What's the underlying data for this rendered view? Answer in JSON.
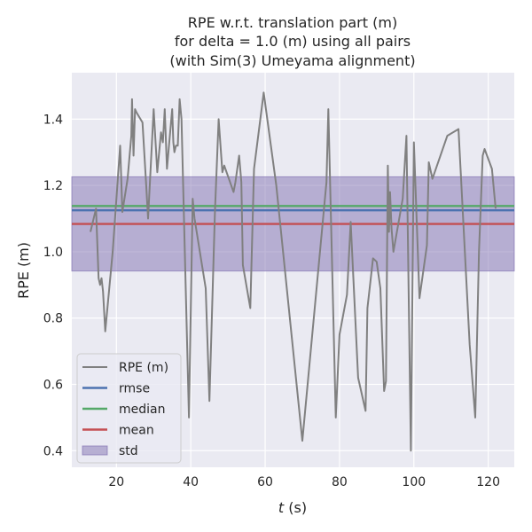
{
  "chart_data": {
    "type": "line",
    "title": [
      "RPE w.r.t. translation part (m)",
      "for delta = 1.0 (m) using all pairs",
      "(with Sim(3) Umeyama alignment)"
    ],
    "xlabel_italic": "t",
    "xlabel_unit": " (s)",
    "ylabel": "RPE (m)",
    "xlim": [
      8,
      127
    ],
    "ylim": [
      0.35,
      1.54
    ],
    "xticks": [
      20,
      40,
      60,
      80,
      100,
      120
    ],
    "yticks": [
      0.4,
      0.6,
      0.8,
      1.0,
      1.2,
      1.4
    ],
    "grid": true,
    "legend_position": "lower left",
    "series": [
      {
        "name": "RPE (m)",
        "color": "#808080",
        "x": [
          13.0,
          14.5,
          15.2,
          15.6,
          16.0,
          16.4,
          17.0,
          19.0,
          21.0,
          21.6,
          23.0,
          24.0,
          24.2,
          24.6,
          25.0,
          25.4,
          27.0,
          28.0,
          28.5,
          30.0,
          31.0,
          32.0,
          32.5,
          33.0,
          33.6,
          35.0,
          35.3,
          35.6,
          36.0,
          36.5,
          37.0,
          37.5,
          39.5,
          40.5,
          41.0,
          44.0,
          45.0,
          46.5,
          47.5,
          48.5,
          49.0,
          51.5,
          52.0,
          53.0,
          53.6,
          54.0,
          56.0,
          57.0,
          59.6,
          63.0,
          70.0,
          76.5,
          77.0,
          79.0,
          80.0,
          82.0,
          83.0,
          85.0,
          87.0,
          87.5,
          89.0,
          90.0,
          91.0,
          92.0,
          92.5,
          93.0,
          93.3,
          93.6,
          94.0,
          94.5,
          97.0,
          98.0,
          99.2,
          100.0,
          101.5,
          103.5,
          104.0,
          105.0,
          109.0,
          112.0,
          115.0,
          116.5,
          117.5,
          118.5,
          119.0,
          121.0,
          122.0
        ],
        "y": [
          1.06,
          1.13,
          0.92,
          0.9,
          0.92,
          0.88,
          0.76,
          1.0,
          1.32,
          1.12,
          1.22,
          1.35,
          1.46,
          1.29,
          1.43,
          1.42,
          1.39,
          1.2,
          1.1,
          1.43,
          1.24,
          1.36,
          1.33,
          1.43,
          1.25,
          1.43,
          1.33,
          1.3,
          1.32,
          1.32,
          1.46,
          1.4,
          0.5,
          1.16,
          1.1,
          0.89,
          0.55,
          1.12,
          1.4,
          1.24,
          1.26,
          1.18,
          1.21,
          1.29,
          1.21,
          0.96,
          0.83,
          1.25,
          1.48,
          1.2,
          0.43,
          1.21,
          1.43,
          0.5,
          0.75,
          0.87,
          1.09,
          0.62,
          0.52,
          0.83,
          0.98,
          0.97,
          0.89,
          0.58,
          0.61,
          1.26,
          1.06,
          1.18,
          1.07,
          1.0,
          1.16,
          1.35,
          0.4,
          1.33,
          0.86,
          1.02,
          1.27,
          1.22,
          1.35,
          1.37,
          0.72,
          0.5,
          1.0,
          1.29,
          1.31,
          1.25,
          1.13
        ]
      },
      {
        "name": "rmse",
        "color": "#4c72b0",
        "value": 1.125
      },
      {
        "name": "median",
        "color": "#55a868",
        "value": 1.138
      },
      {
        "name": "mean",
        "color": "#c44e52",
        "value": 1.084
      },
      {
        "name": "std",
        "color": "#8172b2",
        "range": [
          0.942,
          1.226
        ]
      }
    ]
  },
  "colors": {
    "plot_background": "#eaeaf2",
    "grid": "#ffffff",
    "text": "#262626"
  }
}
